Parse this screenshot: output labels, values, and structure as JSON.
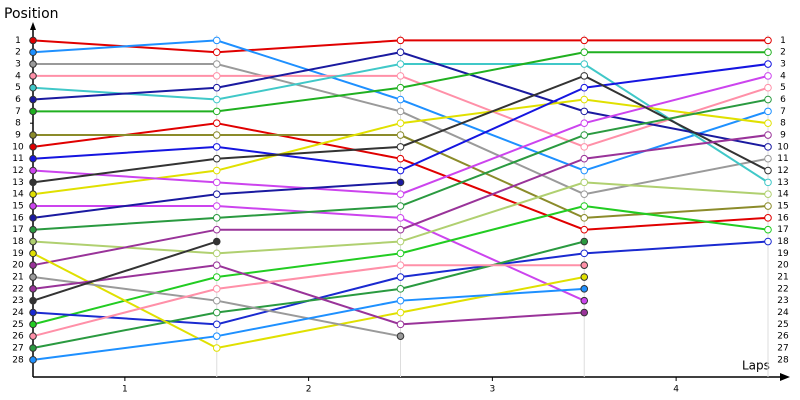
{
  "chart_data": {
    "type": "line",
    "title": "Position",
    "x_label": "Laps",
    "x": [
      0,
      1,
      2,
      3,
      4
    ],
    "xlim": [
      0,
      4
    ],
    "xticks": [
      {
        "value": 0.5,
        "label": "1"
      },
      {
        "value": 1.5,
        "label": "2"
      },
      {
        "value": 2.5,
        "label": "3"
      },
      {
        "value": 3.5,
        "label": "4"
      }
    ],
    "ylim": [
      29.45,
      -0.3
    ],
    "yticks": [
      1,
      2,
      3,
      4,
      5,
      6,
      7,
      8,
      9,
      10,
      11,
      12,
      13,
      14,
      15,
      16,
      17,
      18,
      19,
      20,
      21,
      22,
      23,
      24,
      25,
      26,
      27,
      28
    ],
    "grid": true,
    "series": [
      {
        "color": "#e00000",
        "values": [
          1,
          2,
          1,
          1,
          1
        ]
      },
      {
        "color": "#1e90ff",
        "values": [
          2,
          1,
          6,
          12,
          7
        ]
      },
      {
        "color": "#9a9a9a",
        "values": [
          3,
          3,
          7,
          14,
          11
        ]
      },
      {
        "color": "#ff90a8",
        "values": [
          4,
          4,
          4,
          10,
          5
        ]
      },
      {
        "color": "#40c8c8",
        "values": [
          5,
          6,
          3,
          3,
          13
        ]
      },
      {
        "color": "#1a1aa0",
        "values": [
          6,
          5,
          2,
          7,
          10
        ]
      },
      {
        "color": "#20b020",
        "values": [
          7,
          7,
          5,
          2,
          2
        ]
      },
      {
        "color": "#e00000",
        "values": [
          10,
          8,
          11,
          17,
          16
        ]
      },
      {
        "color": "#8b8b2a",
        "values": [
          9,
          9,
          9,
          16,
          15
        ]
      },
      {
        "color": "#e0e000",
        "values": [
          14,
          12,
          8,
          6,
          8
        ]
      },
      {
        "color": "#1515e0",
        "values": [
          11,
          10,
          12,
          5,
          3
        ]
      },
      {
        "color": "#cc44ee",
        "values": [
          12,
          13,
          14,
          8,
          4
        ]
      },
      {
        "color": "#333333",
        "values": [
          13,
          11,
          10,
          4,
          12
        ]
      },
      {
        "color": "#cc44ee",
        "values": [
          15,
          15,
          16,
          23,
          null
        ]
      },
      {
        "color": "#1a1aa0",
        "values": [
          16,
          14,
          13,
          null,
          null
        ]
      },
      {
        "color": "#2a9a40",
        "values": [
          17,
          16,
          15,
          9,
          6
        ]
      },
      {
        "color": "#b0d070",
        "values": [
          18,
          19,
          18,
          13,
          14
        ]
      },
      {
        "color": "#993399",
        "values": [
          20,
          17,
          17,
          11,
          9
        ]
      },
      {
        "color": "#22cc22",
        "values": [
          25,
          21,
          19,
          15,
          17
        ]
      },
      {
        "color": "#1a2ad0",
        "values": [
          24,
          25,
          21,
          19,
          18
        ]
      },
      {
        "color": "#2a9a40",
        "values": [
          27,
          24,
          22,
          18,
          null
        ]
      },
      {
        "color": "#e0e000",
        "values": [
          19,
          27,
          24,
          21,
          null
        ]
      },
      {
        "color": "#9a9a9a",
        "values": [
          21,
          23,
          26,
          null,
          null
        ]
      },
      {
        "color": "#993399",
        "values": [
          22,
          20,
          25,
          24,
          null
        ]
      },
      {
        "color": "#ff90a8",
        "values": [
          26,
          22,
          20,
          20,
          null
        ]
      },
      {
        "color": "#1e90ff",
        "values": [
          28,
          26,
          23,
          22,
          null
        ]
      },
      {
        "color": "#333333",
        "values": [
          23,
          18,
          null,
          null,
          null
        ]
      }
    ]
  }
}
